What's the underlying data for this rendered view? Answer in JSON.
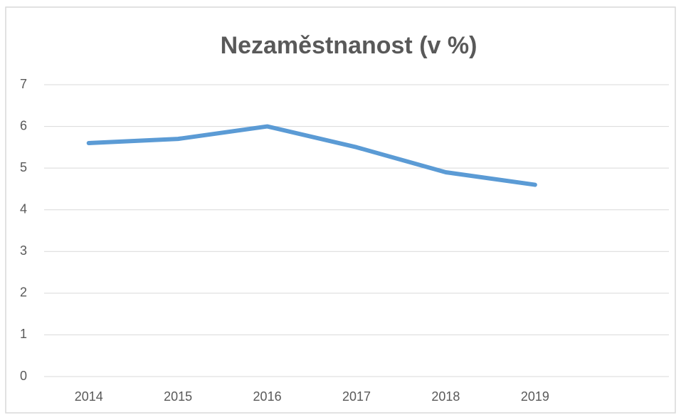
{
  "chart_data": {
    "type": "line",
    "title": "Nezaměstnanost (v %)",
    "categories": [
      "2014",
      "2015",
      "2016",
      "2017",
      "2018",
      "2019",
      null
    ],
    "series": [
      {
        "name": "Nezaměstnanost",
        "color": "#5b9bd5",
        "values": [
          5.6,
          5.7,
          6.0,
          5.5,
          4.9,
          4.6,
          null
        ]
      }
    ],
    "ylim": [
      0,
      7
    ],
    "yticks": [
      0,
      1,
      2,
      3,
      4,
      5,
      6,
      7
    ],
    "grid": true,
    "legend": false
  }
}
